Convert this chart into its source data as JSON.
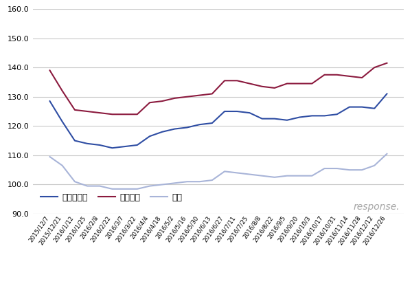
{
  "labels": [
    "2015/12/7",
    "2015/12/21",
    "2016/1/12",
    "2016/1/25",
    "2016/2/8",
    "2016/2/22",
    "2016/3/7",
    "2016/3/22",
    "2016/4/4",
    "2016/4/18",
    "2016/5/2",
    "2016/5/16",
    "2016/5/30",
    "2016/6/13",
    "2016/6/27",
    "2016/7/11",
    "2016/7/25",
    "2016/8/8",
    "2016/8/22",
    "2016/9/5",
    "2016/9/20",
    "2016/10/3",
    "2016/10/17",
    "2016/10/31",
    "2016/11/14",
    "2016/11/28",
    "2016/12/12",
    "2016/12/26"
  ],
  "regular": [
    128.5,
    121.5,
    115.0,
    114.0,
    113.5,
    112.5,
    113.0,
    113.5,
    116.5,
    118.0,
    119.0,
    119.5,
    120.5,
    121.0,
    125.0,
    125.0,
    124.5,
    122.5,
    122.5,
    122.0,
    123.0,
    123.5,
    123.5,
    124.0,
    126.5,
    126.5,
    126.0,
    131.0
  ],
  "premium": [
    139.0,
    132.0,
    125.5,
    125.0,
    124.5,
    124.0,
    124.0,
    124.0,
    128.0,
    128.5,
    129.5,
    130.0,
    130.5,
    131.0,
    135.5,
    135.5,
    134.5,
    133.5,
    133.0,
    134.5,
    134.5,
    134.5,
    137.5,
    137.5,
    137.0,
    136.5,
    140.0,
    141.5
  ],
  "diesel": [
    109.5,
    106.5,
    101.0,
    99.5,
    99.5,
    98.5,
    98.5,
    98.5,
    99.5,
    100.0,
    100.5,
    101.0,
    101.0,
    101.5,
    104.5,
    104.0,
    103.5,
    103.0,
    102.5,
    103.0,
    103.0,
    103.0,
    105.5,
    105.5,
    105.0,
    105.0,
    106.5,
    110.5
  ],
  "regular_color": "#2e4da3",
  "premium_color": "#8b1a3e",
  "diesel_color": "#a8b4d8",
  "ylim": [
    90.0,
    160.0
  ],
  "yticks": [
    90.0,
    100.0,
    110.0,
    120.0,
    130.0,
    140.0,
    150.0,
    160.0
  ],
  "legend_labels": [
    "レギュラー",
    "ハイオク",
    "軽油"
  ],
  "grid_color": "#c8c8c8",
  "bg_color": "#ffffff",
  "watermark": "response.",
  "line_width": 1.5
}
